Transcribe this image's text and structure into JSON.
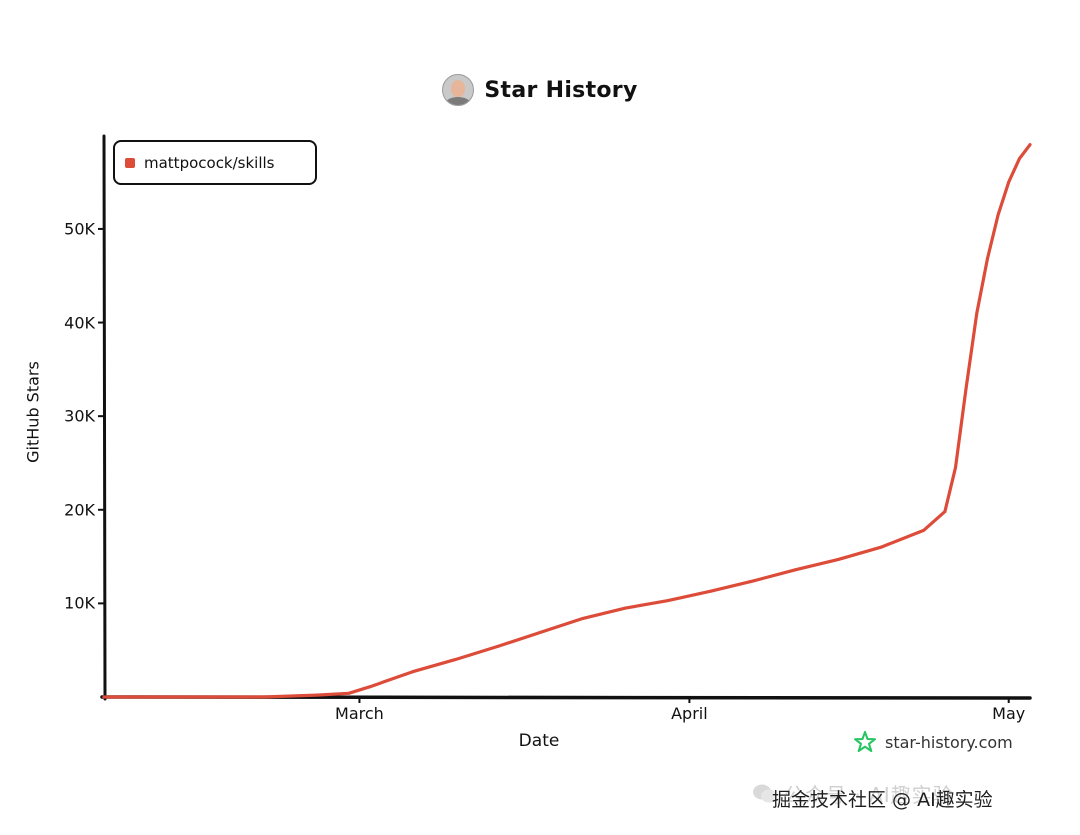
{
  "title": "Star History",
  "legend": {
    "label": "mattpocock/skills",
    "color": "#dd4b39"
  },
  "watermark": {
    "brand": "star-history.com",
    "faded": "公众号 · AI趣实验",
    "main": "掘金技术社区 @ AI趣实验"
  },
  "chart_data": {
    "type": "line",
    "title": "Star History",
    "xlabel": "Date",
    "ylabel": "GitHub Stars",
    "x_tick_labels": [
      "March",
      "April",
      "May"
    ],
    "y_tick_labels": [
      "10K",
      "20K",
      "30K",
      "40K",
      "50K"
    ],
    "y_ticks": [
      10000,
      20000,
      30000,
      40000,
      50000
    ],
    "x_ticks": [
      "2026-03-01",
      "2026-04-01",
      "2026-05-01"
    ],
    "xlim": [
      "2026-02-05",
      "2026-05-03"
    ],
    "ylim": [
      0,
      59500
    ],
    "legend_position": "top-left",
    "grid": false,
    "series": [
      {
        "name": "mattpocock/skills",
        "color": "#dd4b39",
        "points": [
          {
            "x": "2026-02-05",
            "y": 0
          },
          {
            "x": "2026-02-10",
            "y": 0
          },
          {
            "x": "2026-02-15",
            "y": 0
          },
          {
            "x": "2026-02-20",
            "y": 0
          },
          {
            "x": "2026-02-25",
            "y": 200
          },
          {
            "x": "2026-02-28",
            "y": 400
          },
          {
            "x": "2026-03-02",
            "y": 1100
          },
          {
            "x": "2026-03-06",
            "y": 2700
          },
          {
            "x": "2026-03-10",
            "y": 4000
          },
          {
            "x": "2026-03-14",
            "y": 5400
          },
          {
            "x": "2026-03-18",
            "y": 6900
          },
          {
            "x": "2026-03-22",
            "y": 8400
          },
          {
            "x": "2026-03-26",
            "y": 9500
          },
          {
            "x": "2026-03-30",
            "y": 10300
          },
          {
            "x": "2026-04-03",
            "y": 11300
          },
          {
            "x": "2026-04-07",
            "y": 12400
          },
          {
            "x": "2026-04-11",
            "y": 13600
          },
          {
            "x": "2026-04-15",
            "y": 14700
          },
          {
            "x": "2026-04-19",
            "y": 16000
          },
          {
            "x": "2026-04-23",
            "y": 17800
          },
          {
            "x": "2026-04-25",
            "y": 19800
          },
          {
            "x": "2026-04-26",
            "y": 24500
          },
          {
            "x": "2026-04-27",
            "y": 33000
          },
          {
            "x": "2026-04-28",
            "y": 41000
          },
          {
            "x": "2026-04-29",
            "y": 46800
          },
          {
            "x": "2026-04-30",
            "y": 51500
          },
          {
            "x": "2026-05-01",
            "y": 55000
          },
          {
            "x": "2026-05-02",
            "y": 57500
          },
          {
            "x": "2026-05-03",
            "y": 59000
          }
        ]
      }
    ]
  }
}
